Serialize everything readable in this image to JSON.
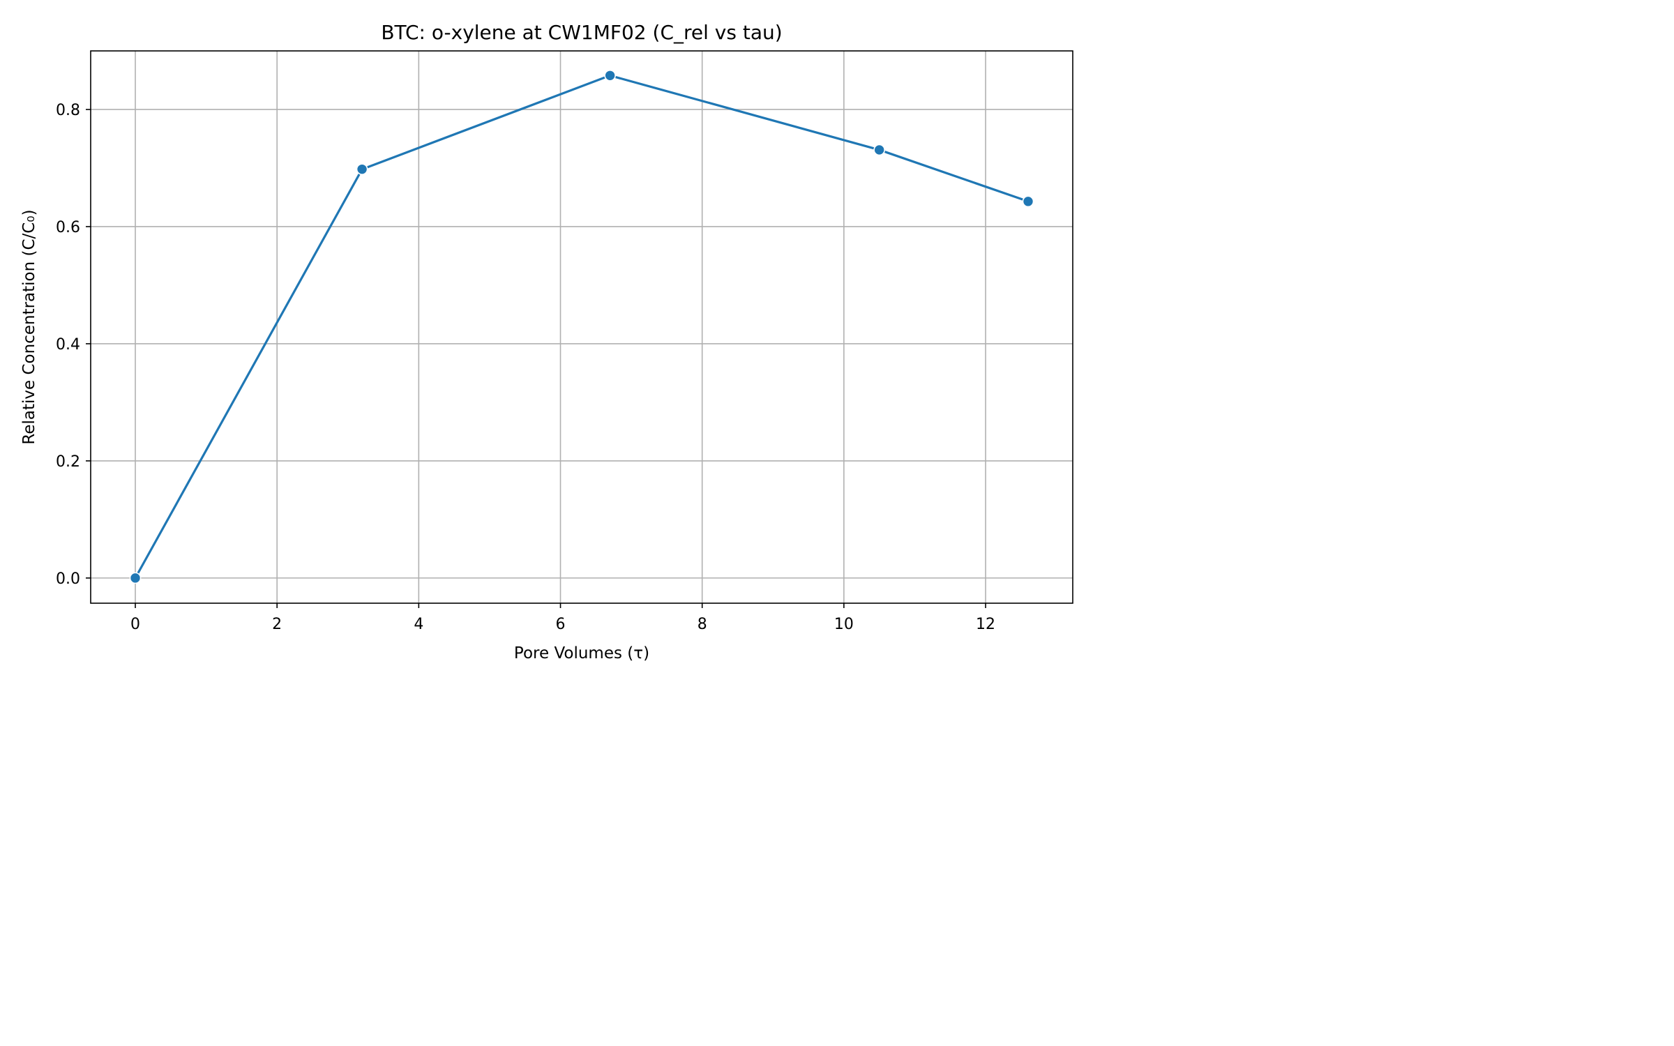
{
  "chart_data": {
    "type": "line",
    "title": "BTC: o-xylene at CW1MF02 (C_rel vs tau)",
    "xlabel": "Pore Volumes (τ)",
    "ylabel": "Relative Concentration (C/C₀)",
    "xlim": [
      -0.63,
      13.23
    ],
    "ylim": [
      -0.043,
      0.9
    ],
    "xticks": [
      0,
      2,
      4,
      6,
      8,
      10,
      12
    ],
    "xtick_labels": [
      "0",
      "2",
      "4",
      "6",
      "8",
      "10",
      "12"
    ],
    "yticks": [
      0.0,
      0.2,
      0.4,
      0.6,
      0.8
    ],
    "ytick_labels": [
      "0.0",
      "0.2",
      "0.4",
      "0.6",
      "0.8"
    ],
    "grid": true,
    "legend": false,
    "series": [
      {
        "x": [
          0,
          3.2,
          6.7,
          10.5,
          12.6
        ],
        "y": [
          0.0,
          0.698,
          0.858,
          0.731,
          0.643
        ],
        "color": "#1f77b4",
        "marker": "circle"
      }
    ]
  }
}
